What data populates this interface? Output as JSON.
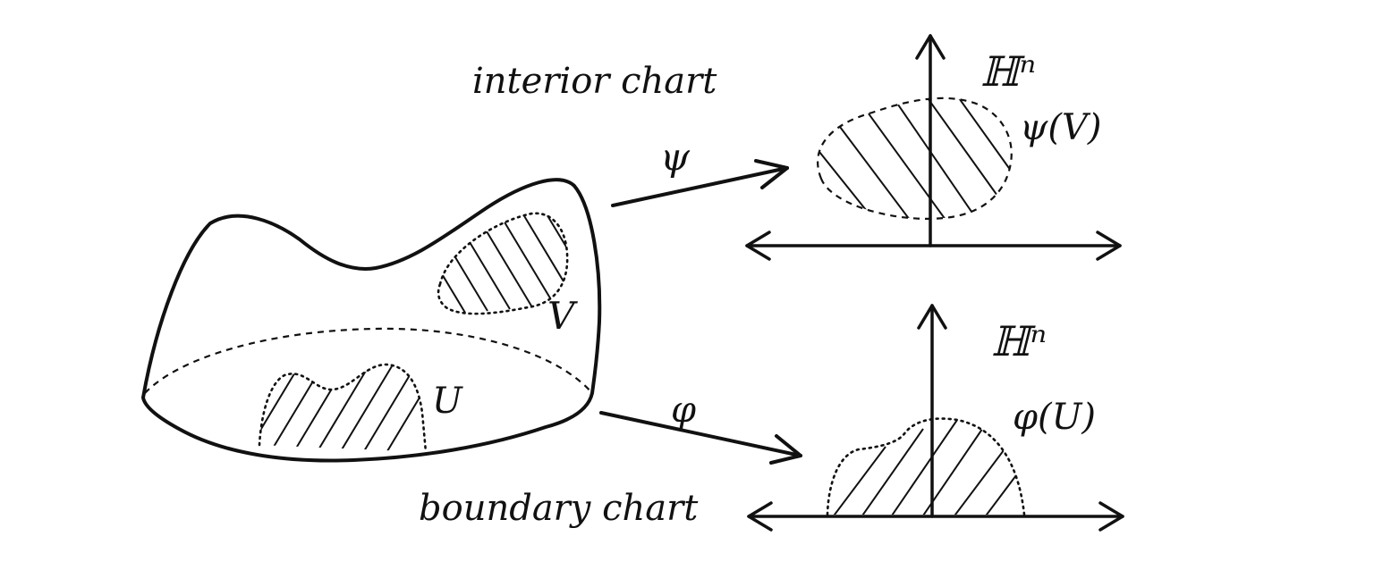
{
  "labels": {
    "interior_chart": "interior chart",
    "boundary_chart": "boundary chart",
    "psi": "ψ",
    "phi": "φ",
    "set_v": "V",
    "set_u": "U",
    "halfspace_top": "ℍⁿ",
    "halfspace_bottom": "ℍⁿ",
    "psi_of_v": "ψ(V)",
    "phi_of_u": "φ(U)"
  },
  "colors": {
    "ink": "#111111",
    "background": "#ffffff"
  }
}
